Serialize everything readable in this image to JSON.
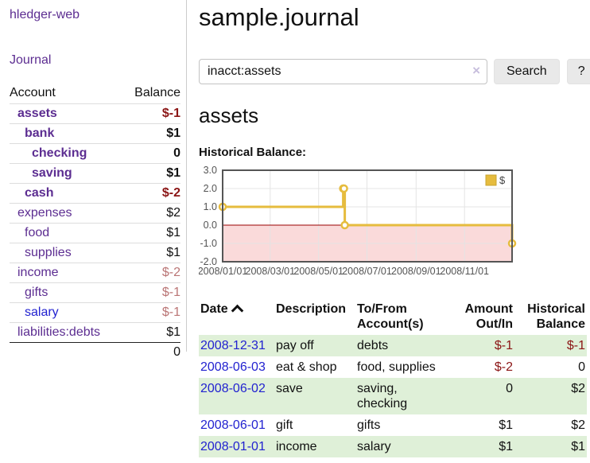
{
  "app_title": "hledger-web",
  "sidebar": {
    "journal_link": "Journal",
    "balance_table": {
      "account_header": "Account",
      "balance_header": "Balance",
      "rows": [
        {
          "account": "assets",
          "balance": "$-1",
          "indent": 1,
          "bold": true,
          "balance_style": "neg-strong",
          "link_style": "purple"
        },
        {
          "account": "bank",
          "balance": "$1",
          "indent": 2,
          "bold": true,
          "balance_style": "",
          "link_style": "purple"
        },
        {
          "account": "checking",
          "balance": "0",
          "indent": 3,
          "bold": true,
          "balance_style": "",
          "link_style": "purple"
        },
        {
          "account": "saving",
          "balance": "$1",
          "indent": 3,
          "bold": true,
          "balance_style": "",
          "link_style": "purple"
        },
        {
          "account": "cash",
          "balance": "$-2",
          "indent": 2,
          "bold": true,
          "balance_style": "neg-strong",
          "link_style": "purple"
        },
        {
          "account": "expenses",
          "balance": "$2",
          "indent": 1,
          "bold": false,
          "balance_style": "",
          "link_style": "purple"
        },
        {
          "account": "food",
          "balance": "$1",
          "indent": 2,
          "bold": false,
          "balance_style": "",
          "link_style": "purple"
        },
        {
          "account": "supplies",
          "balance": "$1",
          "indent": 2,
          "bold": false,
          "balance_style": "",
          "link_style": "purple"
        },
        {
          "account": "income",
          "balance": "$-2",
          "indent": 1,
          "bold": false,
          "balance_style": "neg-soft",
          "link_style": "purple"
        },
        {
          "account": "gifts",
          "balance": "$-1",
          "indent": 2,
          "bold": false,
          "balance_style": "neg-soft",
          "link_style": "purple"
        },
        {
          "account": "salary",
          "balance": "$-1",
          "indent": 2,
          "bold": false,
          "balance_style": "neg-soft",
          "link_style": "blue"
        },
        {
          "account": "liabilities:debts",
          "balance": "$1",
          "indent": 1,
          "bold": false,
          "balance_style": "",
          "link_style": "purple"
        }
      ],
      "total": "0"
    }
  },
  "main": {
    "title": "sample.journal",
    "search": {
      "value": "inacct:assets",
      "clear_icon": "×",
      "search_button": "Search",
      "help_button": "?"
    },
    "account_heading": "assets",
    "section_label": "Historical Balance:"
  },
  "chart_data": {
    "type": "line",
    "mode": "step",
    "title": "Historical Balance",
    "series": [
      {
        "name": "$",
        "color": "#e6bc3e",
        "points": [
          [
            "2008-01-01",
            1
          ],
          [
            "2008-06-01",
            2
          ],
          [
            "2008-06-02",
            2
          ],
          [
            "2008-06-03",
            0
          ],
          [
            "2008-12-31",
            -1
          ]
        ]
      }
    ],
    "x_ticks": [
      "2008/01/01",
      "2008/03/01",
      "2008/05/01",
      "2008/07/01",
      "2008/09/01",
      "2008/11/01"
    ],
    "y_ticks": [
      "3.0",
      "2.0",
      "1.0",
      "0.0",
      "-1.0",
      "-2.0"
    ],
    "ylim": [
      -2,
      3
    ],
    "xlim": [
      "2008-01-01",
      "2008-12-31"
    ],
    "grid": true,
    "legend_position": "top-right",
    "legend": [
      {
        "label": "$",
        "color": "#e6bc3e"
      }
    ],
    "negative_fill": "#fadada",
    "zero_line_color": "#990000",
    "border_color": "#555555",
    "tick_color": "#545454"
  },
  "register": {
    "headers": {
      "date": "Date",
      "sort_icon": "chevron-up",
      "description": "Description",
      "accounts": "To/From Account(s)",
      "amount": "Amount Out/In",
      "balance": "Historical Balance"
    },
    "rows": [
      {
        "date": "2008-12-31",
        "description": "pay off",
        "accounts": "debts",
        "amount": "$-1",
        "balance": "$-1",
        "amount_neg": true,
        "balance_neg": true,
        "green": true
      },
      {
        "date": "2008-06-03",
        "description": "eat & shop",
        "accounts": "food, supplies",
        "amount": "$-2",
        "balance": "0",
        "amount_neg": true,
        "balance_neg": false,
        "green": false
      },
      {
        "date": "2008-06-02",
        "description": "save",
        "accounts": "saving, checking",
        "amount": "0",
        "balance": "$2",
        "amount_neg": false,
        "balance_neg": false,
        "green": true
      },
      {
        "date": "2008-06-01",
        "description": "gift",
        "accounts": "gifts",
        "amount": "$1",
        "balance": "$2",
        "amount_neg": false,
        "balance_neg": false,
        "green": false
      },
      {
        "date": "2008-01-01",
        "description": "income",
        "accounts": "salary",
        "amount": "$1",
        "balance": "$1",
        "amount_neg": false,
        "balance_neg": false,
        "green": true
      }
    ]
  },
  "colors": {
    "link_purple": "#5c2d91",
    "link_blue": "#2222d0",
    "negative_strong": "#8b1515",
    "negative_soft": "#ba7575",
    "row_green": "#dff0d8",
    "chart_gold": "#e6bc3e"
  }
}
